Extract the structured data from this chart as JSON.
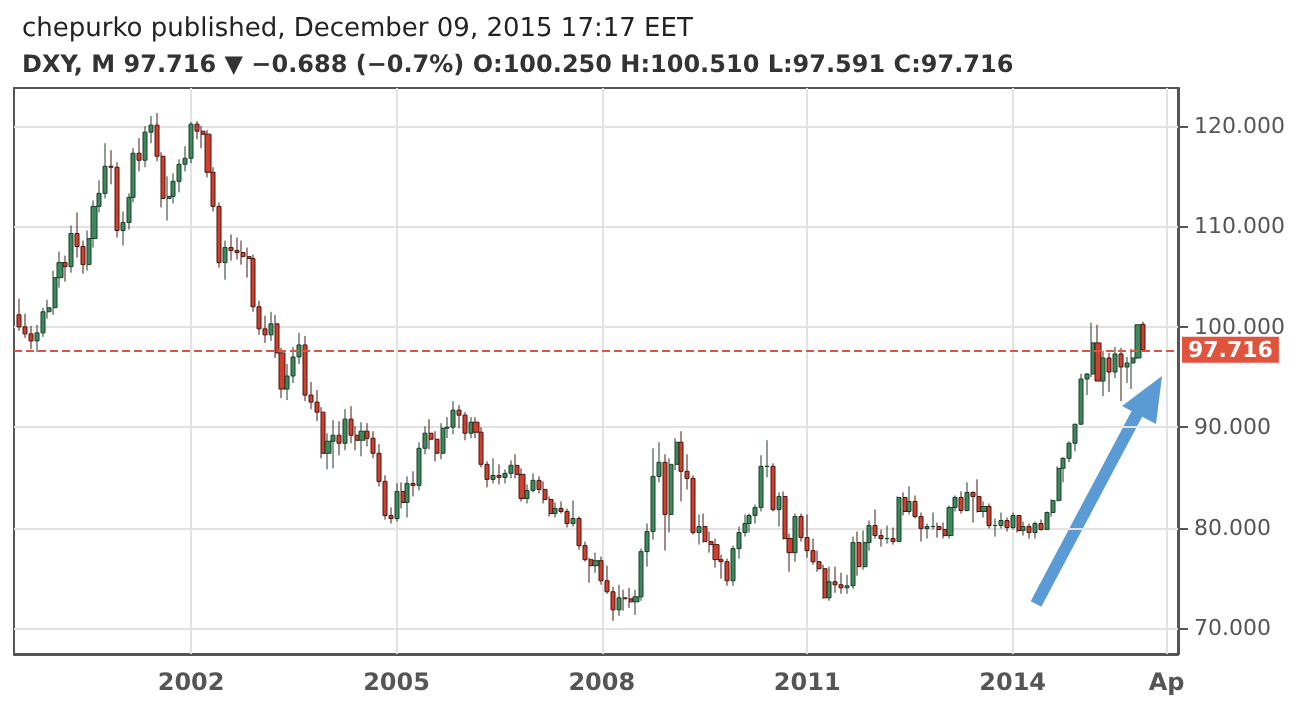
{
  "chart_data": {
    "type": "candlestick",
    "title": "chepurko published, December 09, 2015 17:17 EET",
    "subtitle": "DXY, M 97.716 ▼ −0.688 (−0.7%) O:100.250 H:100.510 L:97.591 C:97.716",
    "x": [
      "1999-07",
      "1999-08",
      "1999-09",
      "1999-10",
      "1999-11",
      "1999-12",
      "2000-01",
      "2000-02",
      "2000-03",
      "2000-04",
      "2000-05",
      "2000-06",
      "2000-07",
      "2000-08",
      "2000-09",
      "2000-10",
      "2000-11",
      "2000-12",
      "2001-01",
      "2001-02",
      "2001-03",
      "2001-04",
      "2001-05",
      "2001-06",
      "2001-07",
      "2001-08",
      "2001-09",
      "2001-10",
      "2001-11",
      "2001-12",
      "2002-01",
      "2002-02",
      "2002-03",
      "2002-04",
      "2002-05",
      "2002-06",
      "2002-07",
      "2002-08",
      "2002-09",
      "2002-10",
      "2002-11",
      "2002-12",
      "2003-01",
      "2003-02",
      "2003-03",
      "2003-04",
      "2003-05",
      "2003-06",
      "2003-07",
      "2003-08",
      "2003-09",
      "2003-10",
      "2003-11",
      "2003-12",
      "2004-01",
      "2004-02",
      "2004-03",
      "2004-04",
      "2004-05",
      "2004-06",
      "2004-07",
      "2004-08",
      "2004-09",
      "2004-10",
      "2004-11",
      "2004-12",
      "2005-01",
      "2005-02",
      "2005-03",
      "2005-04",
      "2005-05",
      "2005-06",
      "2005-07",
      "2005-08",
      "2005-09",
      "2005-10",
      "2005-11",
      "2005-12",
      "2006-01",
      "2006-02",
      "2006-03",
      "2006-04",
      "2006-05",
      "2006-06",
      "2006-07",
      "2006-08",
      "2006-09",
      "2006-10",
      "2006-11",
      "2006-12",
      "2007-01",
      "2007-02",
      "2007-03",
      "2007-04",
      "2007-05",
      "2007-06",
      "2007-07",
      "2007-08",
      "2007-09",
      "2007-10",
      "2007-11",
      "2007-12",
      "2008-01",
      "2008-02",
      "2008-03",
      "2008-04",
      "2008-05",
      "2008-06",
      "2008-07",
      "2008-08",
      "2008-09",
      "2008-10",
      "2008-11",
      "2008-12",
      "2009-01",
      "2009-02",
      "2009-03",
      "2009-04",
      "2009-05",
      "2009-06",
      "2009-07",
      "2009-08",
      "2009-09",
      "2009-10",
      "2009-11",
      "2009-12",
      "2010-01",
      "2010-02",
      "2010-03",
      "2010-04",
      "2010-05",
      "2010-06",
      "2010-07",
      "2010-08",
      "2010-09",
      "2010-10",
      "2010-11",
      "2010-12",
      "2011-01",
      "2011-02",
      "2011-03",
      "2011-04",
      "2011-05",
      "2011-06",
      "2011-07",
      "2011-08",
      "2011-09",
      "2011-10",
      "2011-11",
      "2011-12",
      "2012-01",
      "2012-02",
      "2012-03",
      "2012-04",
      "2012-05",
      "2012-06",
      "2012-07",
      "2012-08",
      "2012-09",
      "2012-10",
      "2012-11",
      "2012-12",
      "2013-01",
      "2013-02",
      "2013-03",
      "2013-04",
      "2013-05",
      "2013-06",
      "2013-07",
      "2013-08",
      "2013-09",
      "2013-10",
      "2013-11",
      "2013-12",
      "2014-01",
      "2014-02",
      "2014-03",
      "2014-04",
      "2014-05",
      "2014-06",
      "2014-07",
      "2014-08",
      "2014-09",
      "2014-10",
      "2014-11",
      "2014-12",
      "2015-01",
      "2015-02",
      "2015-03",
      "2015-04",
      "2015-05",
      "2015-06",
      "2015-07",
      "2015-08",
      "2015-09",
      "2015-10",
      "2015-11",
      "2015-12"
    ],
    "ohlc": [
      [
        101.2,
        102.8,
        99.6,
        100.0
      ],
      [
        100.0,
        101.3,
        98.9,
        99.3
      ],
      [
        99.3,
        100.1,
        97.8,
        98.6
      ],
      [
        98.6,
        100.2,
        97.5,
        99.4
      ],
      [
        99.4,
        101.9,
        99.0,
        101.5
      ],
      [
        101.5,
        102.7,
        100.8,
        101.9
      ],
      [
        101.9,
        105.6,
        101.2,
        104.9
      ],
      [
        104.9,
        107.5,
        103.9,
        106.4
      ],
      [
        106.4,
        107.1,
        104.5,
        106.0
      ],
      [
        106.0,
        110.1,
        105.4,
        109.3
      ],
      [
        109.3,
        111.4,
        106.9,
        108.0
      ],
      [
        108.0,
        108.6,
        105.3,
        106.2
      ],
      [
        106.2,
        109.6,
        105.6,
        108.8
      ],
      [
        108.8,
        112.6,
        107.9,
        112.0
      ],
      [
        112.0,
        114.6,
        111.4,
        113.3
      ],
      [
        113.3,
        118.3,
        112.8,
        116.0
      ],
      [
        116.0,
        117.6,
        114.2,
        115.9
      ],
      [
        115.9,
        116.4,
        108.9,
        109.6
      ],
      [
        109.6,
        111.5,
        108.1,
        110.4
      ],
      [
        110.4,
        113.3,
        109.7,
        112.9
      ],
      [
        112.9,
        117.8,
        112.4,
        117.3
      ],
      [
        117.3,
        118.8,
        115.5,
        116.6
      ],
      [
        116.6,
        120.0,
        115.9,
        119.4
      ],
      [
        119.4,
        121.0,
        118.3,
        120.1
      ],
      [
        120.1,
        121.3,
        116.5,
        117.0
      ],
      [
        117.0,
        117.4,
        111.9,
        112.8
      ],
      [
        112.8,
        115.0,
        110.6,
        113.0
      ],
      [
        113.0,
        115.3,
        112.3,
        114.5
      ],
      [
        114.5,
        116.7,
        113.4,
        116.2
      ],
      [
        116.2,
        118.0,
        115.5,
        116.8
      ],
      [
        116.8,
        120.4,
        116.3,
        120.2
      ],
      [
        120.2,
        120.5,
        118.7,
        119.5
      ],
      [
        119.5,
        120.0,
        117.8,
        119.2
      ],
      [
        119.2,
        119.6,
        114.9,
        115.4
      ],
      [
        115.4,
        115.9,
        111.5,
        112.0
      ],
      [
        112.0,
        112.4,
        105.9,
        106.4
      ],
      [
        106.4,
        108.6,
        104.7,
        107.9
      ],
      [
        107.9,
        109.2,
        106.6,
        107.6
      ],
      [
        107.6,
        108.9,
        106.7,
        107.4
      ],
      [
        107.4,
        108.6,
        106.2,
        107.0
      ],
      [
        107.0,
        107.9,
        104.9,
        106.8
      ],
      [
        106.8,
        107.2,
        101.5,
        102.0
      ],
      [
        102.0,
        102.6,
        99.2,
        99.8
      ],
      [
        99.8,
        101.1,
        98.4,
        99.2
      ],
      [
        99.2,
        101.5,
        98.6,
        100.3
      ],
      [
        100.3,
        101.2,
        96.9,
        97.4
      ],
      [
        97.4,
        97.9,
        92.9,
        93.8
      ],
      [
        93.8,
        96.3,
        92.7,
        95.1
      ],
      [
        95.1,
        98.0,
        94.4,
        97.0
      ],
      [
        97.0,
        99.4,
        96.3,
        98.2
      ],
      [
        98.2,
        99.1,
        92.6,
        93.2
      ],
      [
        93.2,
        94.5,
        91.8,
        92.5
      ],
      [
        92.5,
        93.7,
        90.6,
        91.5
      ],
      [
        91.5,
        92.0,
        86.9,
        87.4
      ],
      [
        87.4,
        89.4,
        85.8,
        88.6
      ],
      [
        88.6,
        90.7,
        85.9,
        89.2
      ],
      [
        89.2,
        90.6,
        87.2,
        88.4
      ],
      [
        88.4,
        91.8,
        87.7,
        90.8
      ],
      [
        90.8,
        92.1,
        88.4,
        89.2
      ],
      [
        89.2,
        90.1,
        87.7,
        88.7
      ],
      [
        88.7,
        90.5,
        87.1,
        89.6
      ],
      [
        89.6,
        90.4,
        88.1,
        88.9
      ],
      [
        88.9,
        89.6,
        86.9,
        87.4
      ],
      [
        87.4,
        88.3,
        84.1,
        84.6
      ],
      [
        84.6,
        85.2,
        80.8,
        81.2
      ],
      [
        81.2,
        82.0,
        80.4,
        80.9
      ],
      [
        80.9,
        84.4,
        80.6,
        83.6
      ],
      [
        83.6,
        84.5,
        81.9,
        82.5
      ],
      [
        82.5,
        85.1,
        81.0,
        84.4
      ],
      [
        84.4,
        85.6,
        83.1,
        84.2
      ],
      [
        84.2,
        88.5,
        83.7,
        87.9
      ],
      [
        87.9,
        90.1,
        87.3,
        89.4
      ],
      [
        89.4,
        90.8,
        87.8,
        88.8
      ],
      [
        88.8,
        89.6,
        86.6,
        87.4
      ],
      [
        87.4,
        90.4,
        86.8,
        89.9
      ],
      [
        89.9,
        91.0,
        88.9,
        90.0
      ],
      [
        90.0,
        92.6,
        89.3,
        91.7
      ],
      [
        91.7,
        92.2,
        89.9,
        91.2
      ],
      [
        91.2,
        91.5,
        88.7,
        89.4
      ],
      [
        89.4,
        91.0,
        88.9,
        90.5
      ],
      [
        90.5,
        91.0,
        88.9,
        89.5
      ],
      [
        89.5,
        90.0,
        86.0,
        86.3
      ],
      [
        86.3,
        86.6,
        84.0,
        84.8
      ],
      [
        84.8,
        86.9,
        84.4,
        85.2
      ],
      [
        85.2,
        86.3,
        84.3,
        85.0
      ],
      [
        85.0,
        85.8,
        84.4,
        85.4
      ],
      [
        85.4,
        86.7,
        84.9,
        86.2
      ],
      [
        86.2,
        87.3,
        84.9,
        85.3
      ],
      [
        85.3,
        85.9,
        82.6,
        82.9
      ],
      [
        82.9,
        84.3,
        82.4,
        83.7
      ],
      [
        83.7,
        85.4,
        83.5,
        84.7
      ],
      [
        84.7,
        85.1,
        83.4,
        83.8
      ],
      [
        83.8,
        84.6,
        82.4,
        82.8
      ],
      [
        82.8,
        83.1,
        81.1,
        81.4
      ],
      [
        81.4,
        82.5,
        81.0,
        81.9
      ],
      [
        81.9,
        82.6,
        81.4,
        81.6
      ],
      [
        81.6,
        81.9,
        80.0,
        80.4
      ],
      [
        80.4,
        82.7,
        80.1,
        80.9
      ],
      [
        80.9,
        81.1,
        77.8,
        78.2
      ],
      [
        78.2,
        78.6,
        76.6,
        76.8
      ],
      [
        76.8,
        77.0,
        74.5,
        76.2
      ],
      [
        76.2,
        77.5,
        75.5,
        76.7
      ],
      [
        76.7,
        77.1,
        74.3,
        74.7
      ],
      [
        74.7,
        76.2,
        73.4,
        73.6
      ],
      [
        73.6,
        74.1,
        70.7,
        71.8
      ],
      [
        71.8,
        74.3,
        71.2,
        73.0
      ],
      [
        73.0,
        73.8,
        71.7,
        72.9
      ],
      [
        72.9,
        74.0,
        72.0,
        72.6
      ],
      [
        72.6,
        73.8,
        71.3,
        73.1
      ],
      [
        73.1,
        77.9,
        72.7,
        77.6
      ],
      [
        77.6,
        80.4,
        76.1,
        79.6
      ],
      [
        79.6,
        87.9,
        78.8,
        85.1
      ],
      [
        85.1,
        88.5,
        84.5,
        86.5
      ],
      [
        86.5,
        87.3,
        77.7,
        81.3
      ],
      [
        81.3,
        86.9,
        79.5,
        86.3
      ],
      [
        86.3,
        88.9,
        85.7,
        88.5
      ],
      [
        88.5,
        89.6,
        82.6,
        85.6
      ],
      [
        85.6,
        87.3,
        83.8,
        84.9
      ],
      [
        84.9,
        85.2,
        79.3,
        79.5
      ],
      [
        79.5,
        81.3,
        78.3,
        80.1
      ],
      [
        80.1,
        81.4,
        78.5,
        78.6
      ],
      [
        78.6,
        79.6,
        77.5,
        78.3
      ],
      [
        78.3,
        78.9,
        76.0,
        76.8
      ],
      [
        76.8,
        77.3,
        74.9,
        76.6
      ],
      [
        76.6,
        76.9,
        74.2,
        74.7
      ],
      [
        74.7,
        78.2,
        74.2,
        77.9
      ],
      [
        77.9,
        80.1,
        76.9,
        79.5
      ],
      [
        79.5,
        81.3,
        79.1,
        80.4
      ],
      [
        80.4,
        81.4,
        79.5,
        81.2
      ],
      [
        81.2,
        82.3,
        80.4,
        82.0
      ],
      [
        82.0,
        87.2,
        81.6,
        86.1
      ],
      [
        86.1,
        88.7,
        85.0,
        86.1
      ],
      [
        86.1,
        86.4,
        81.6,
        81.8
      ],
      [
        81.8,
        83.5,
        80.1,
        83.1
      ],
      [
        83.1,
        83.6,
        78.8,
        78.9
      ],
      [
        78.9,
        79.4,
        75.6,
        77.5
      ],
      [
        77.5,
        81.4,
        76.6,
        81.1
      ],
      [
        81.1,
        81.4,
        78.6,
        79.0
      ],
      [
        79.0,
        81.3,
        77.0,
        77.7
      ],
      [
        77.7,
        78.9,
        76.3,
        76.6
      ],
      [
        76.6,
        77.7,
        75.6,
        75.9
      ],
      [
        75.9,
        76.3,
        72.9,
        73.0
      ],
      [
        73.0,
        76.1,
        72.7,
        74.6
      ],
      [
        74.6,
        76.1,
        73.5,
        74.3
      ],
      [
        74.3,
        75.5,
        73.4,
        74.0
      ],
      [
        74.0,
        75.3,
        73.4,
        74.2
      ],
      [
        74.2,
        79.1,
        73.9,
        78.5
      ],
      [
        78.5,
        79.6,
        75.2,
        76.1
      ],
      [
        76.1,
        79.7,
        75.8,
        78.5
      ],
      [
        78.5,
        80.7,
        77.7,
        80.2
      ],
      [
        80.2,
        81.8,
        78.9,
        79.2
      ],
      [
        79.2,
        79.8,
        78.1,
        78.9
      ],
      [
        78.9,
        80.2,
        78.4,
        78.9
      ],
      [
        78.9,
        80.0,
        78.3,
        78.6
      ],
      [
        78.6,
        83.1,
        78.6,
        83.0
      ],
      [
        83.0,
        83.5,
        81.2,
        81.6
      ],
      [
        81.6,
        84.1,
        81.3,
        82.6
      ],
      [
        82.6,
        83.2,
        80.9,
        81.1
      ],
      [
        81.1,
        81.5,
        78.6,
        79.9
      ],
      [
        79.9,
        80.4,
        78.9,
        80.1
      ],
      [
        80.1,
        81.5,
        79.8,
        80.1
      ],
      [
        80.1,
        80.5,
        79.0,
        79.8
      ],
      [
        79.8,
        80.5,
        78.9,
        79.2
      ],
      [
        79.2,
        82.2,
        78.9,
        82.0
      ],
      [
        82.0,
        83.2,
        81.6,
        83.0
      ],
      [
        83.0,
        83.6,
        81.4,
        81.7
      ],
      [
        81.7,
        84.5,
        81.6,
        83.5
      ],
      [
        83.5,
        83.6,
        80.5,
        83.1
      ],
      [
        83.1,
        84.8,
        81.5,
        81.6
      ],
      [
        81.6,
        82.6,
        81.0,
        82.1
      ],
      [
        82.1,
        82.4,
        79.9,
        80.2
      ],
      [
        80.2,
        80.9,
        79.1,
        80.2
      ],
      [
        80.2,
        81.5,
        79.9,
        80.7
      ],
      [
        80.7,
        81.0,
        79.6,
        80.0
      ],
      [
        80.0,
        81.5,
        79.8,
        81.2
      ],
      [
        81.2,
        81.2,
        79.5,
        79.7
      ],
      [
        79.7,
        80.6,
        79.2,
        80.1
      ],
      [
        80.1,
        80.4,
        78.9,
        79.5
      ],
      [
        79.5,
        80.6,
        78.9,
        80.4
      ],
      [
        80.4,
        80.8,
        79.7,
        79.8
      ],
      [
        79.8,
        81.6,
        79.8,
        81.5
      ],
      [
        81.5,
        82.8,
        81.1,
        82.7
      ],
      [
        82.7,
        86.1,
        82.6,
        85.9
      ],
      [
        85.9,
        87.0,
        84.5,
        86.9
      ],
      [
        86.9,
        88.6,
        86.5,
        88.4
      ],
      [
        88.4,
        90.3,
        87.6,
        90.3
      ],
      [
        90.3,
        95.3,
        90.2,
        94.8
      ],
      [
        94.8,
        95.4,
        93.2,
        95.3
      ],
      [
        95.3,
        100.4,
        95.0,
        98.4
      ],
      [
        98.4,
        100.2,
        94.6,
        94.6
      ],
      [
        94.6,
        97.6,
        93.1,
        96.9
      ],
      [
        96.9,
        97.4,
        93.5,
        95.5
      ],
      [
        95.5,
        98.0,
        94.9,
        97.3
      ],
      [
        97.3,
        97.9,
        92.6,
        96.0
      ],
      [
        96.0,
        97.0,
        94.4,
        96.4
      ],
      [
        96.4,
        97.8,
        93.8,
        96.9
      ],
      [
        96.9,
        100.2,
        96.8,
        100.2
      ],
      [
        100.25,
        100.51,
        97.591,
        97.716
      ]
    ],
    "xlim": [
      "1999-06",
      "2016-06"
    ],
    "xticks": [
      {
        "value": "2002-01",
        "label": "2002"
      },
      {
        "value": "2005-01",
        "label": "2005"
      },
      {
        "value": "2008-01",
        "label": "2008"
      },
      {
        "value": "2011-01",
        "label": "2011"
      },
      {
        "value": "2014-01",
        "label": "2014"
      },
      {
        "value": "2016-04",
        "label": "Ap"
      }
    ],
    "ylim": [
      67.4,
      123.8
    ],
    "yticks": [
      {
        "value": 70,
        "label": "70.000"
      },
      {
        "value": 80,
        "label": "80.000"
      },
      {
        "value": 90,
        "label": "90.000"
      },
      {
        "value": 100,
        "label": "100.000"
      },
      {
        "value": 110,
        "label": "110.000"
      },
      {
        "value": 120,
        "label": "120.000"
      }
    ],
    "grid": true,
    "ref_lines": [
      {
        "axis": "y",
        "value": 97.716,
        "label": "97.716",
        "color": "#e0533d",
        "line_style": "dashed"
      }
    ]
  }
}
